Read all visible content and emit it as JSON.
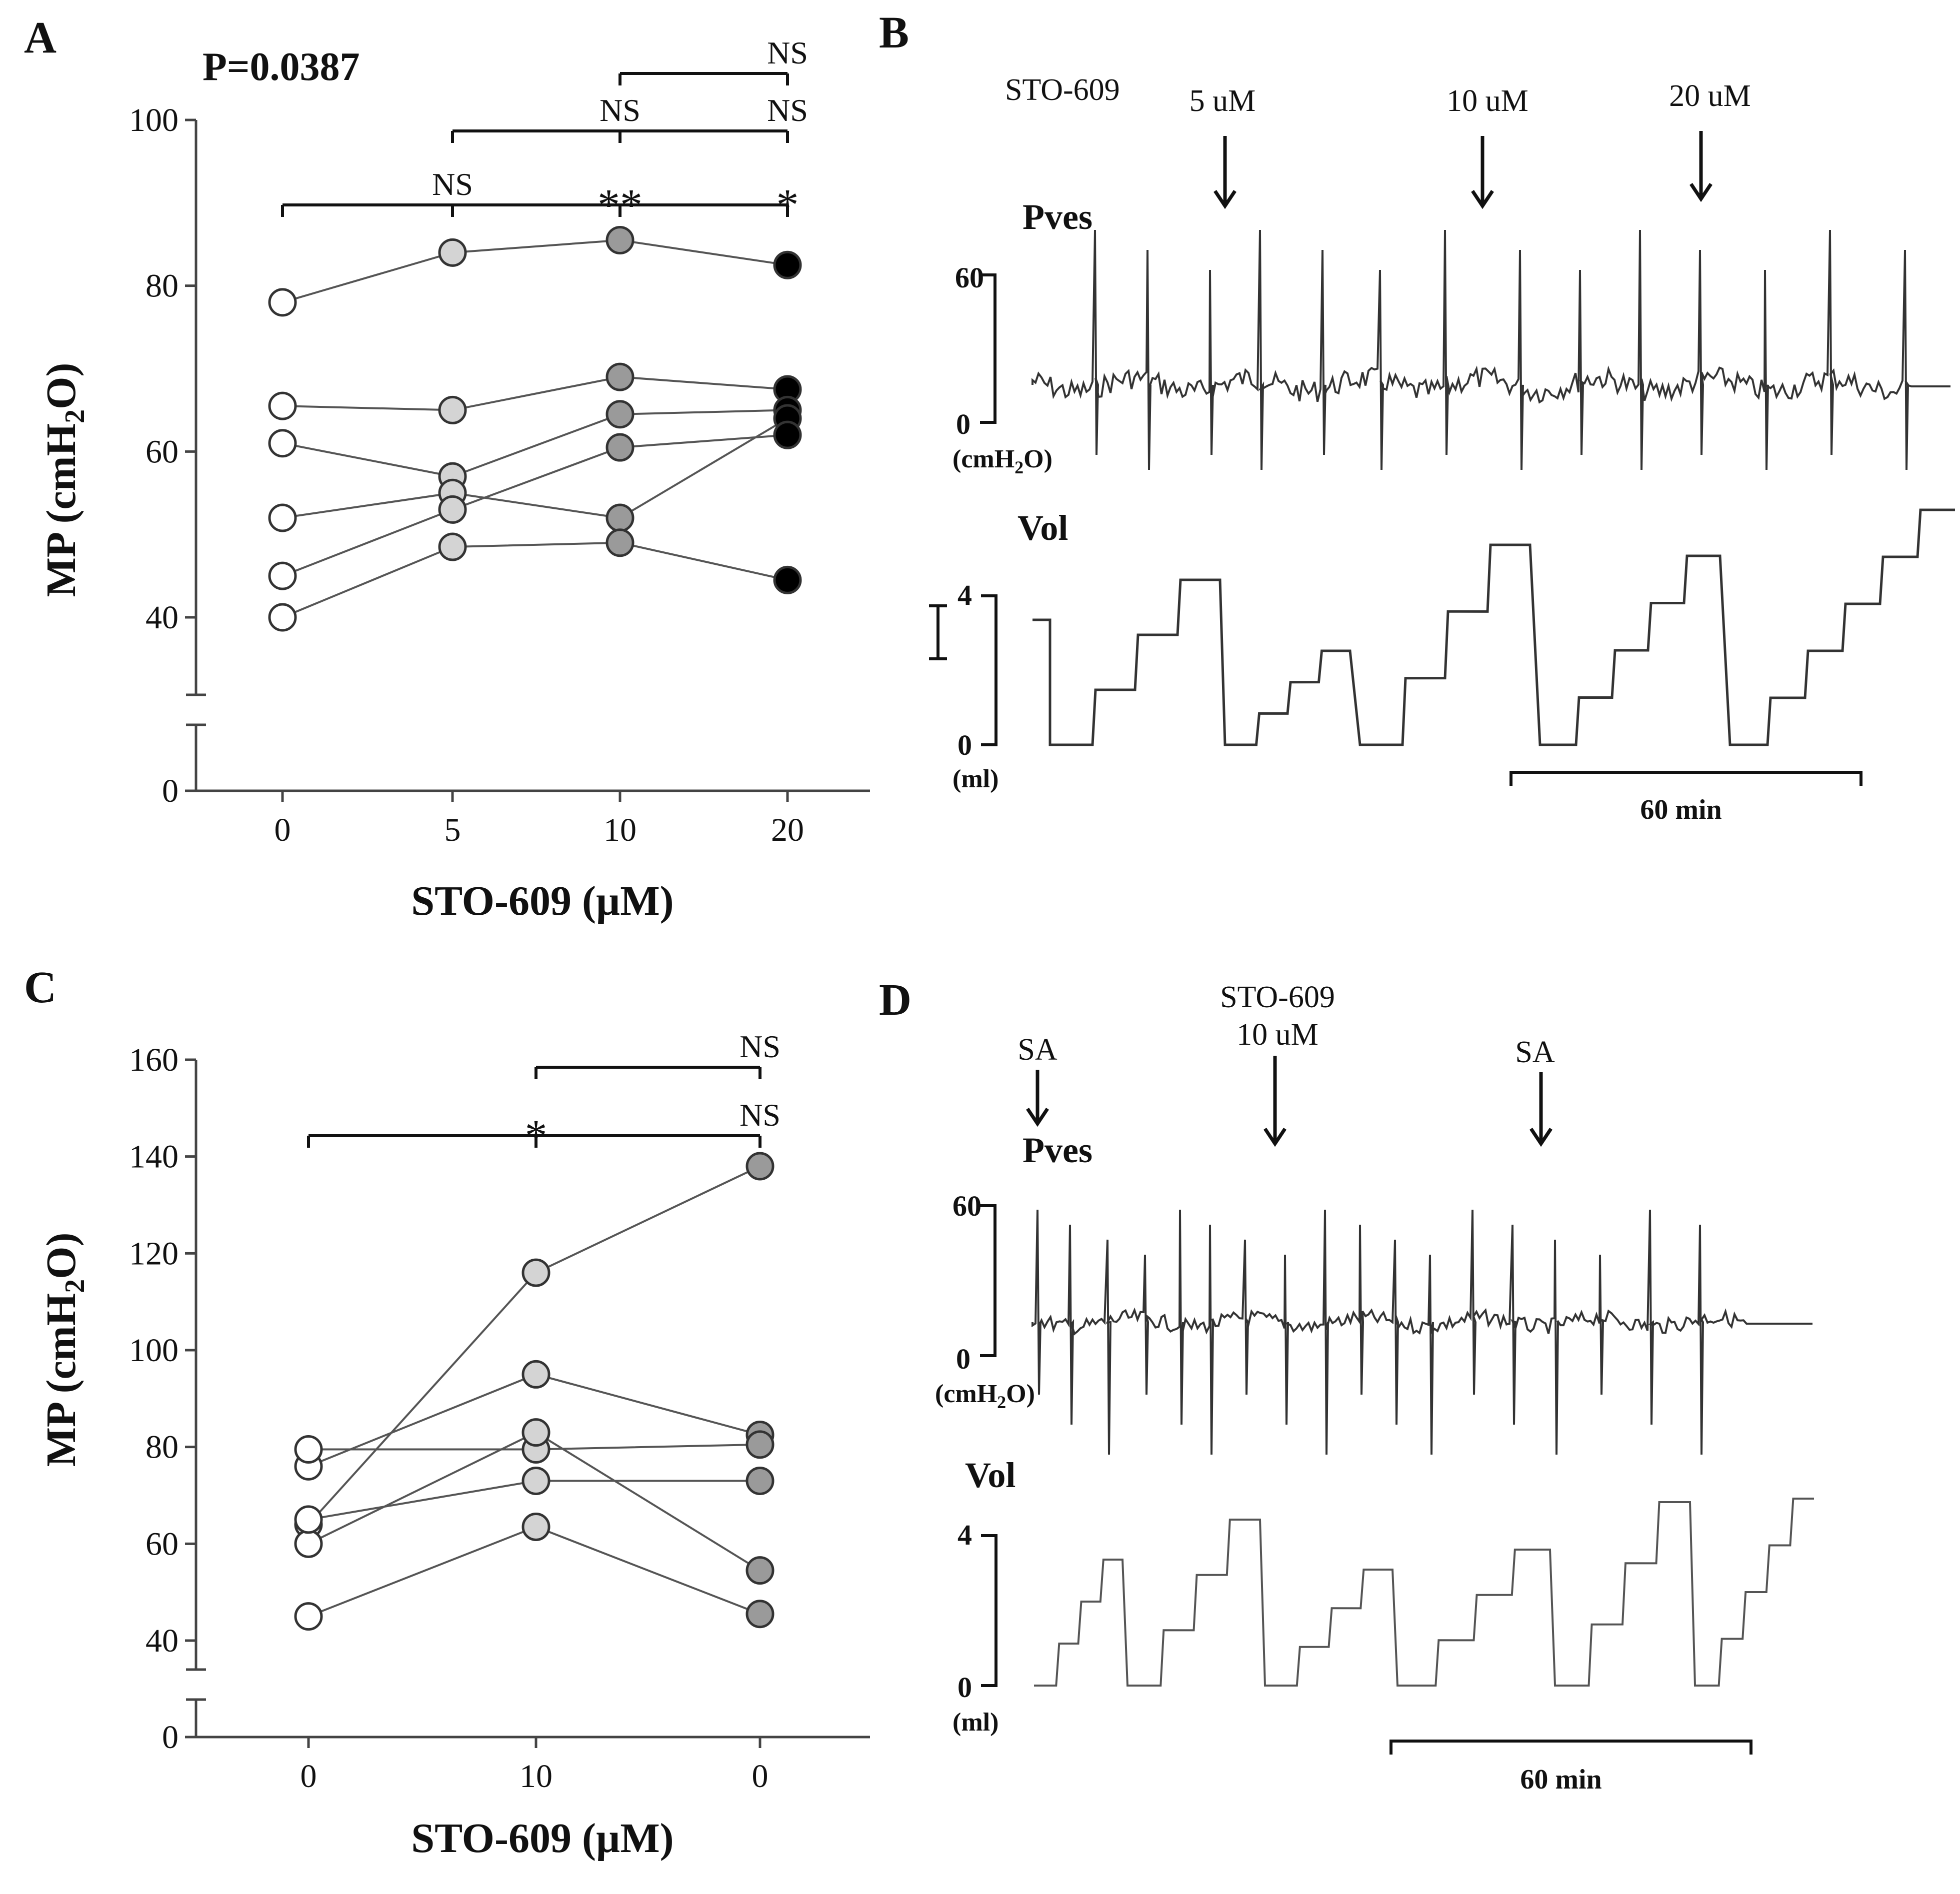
{
  "panels": {
    "A": {
      "letter": "A",
      "pvalue": "P=0.0387",
      "ylabel_main": "MP (cmH",
      "ylabel_sub": "2",
      "ylabel_end": "O)",
      "xlabel": "STO-609 (µM)",
      "yticks": [
        100,
        80,
        60,
        40,
        0
      ],
      "xticks": [
        "0",
        "5",
        "10",
        "20"
      ],
      "sig": [
        {
          "from": 0,
          "to": 3,
          "labels": [
            {
              "at": 1,
              "text": "NS"
            },
            {
              "at": 2,
              "text": "**"
            },
            {
              "at": 3,
              "text": "*"
            }
          ]
        },
        {
          "from": 1,
          "to": 3,
          "labels": [
            {
              "at": 2,
              "text": "NS"
            },
            {
              "at": 3,
              "text": "NS"
            }
          ]
        },
        {
          "from": 2,
          "to": 3,
          "labels": [
            {
              "at": 3,
              "text": "NS"
            }
          ]
        }
      ]
    },
    "C": {
      "letter": "C",
      "ylabel_main": "MP (cmH",
      "ylabel_sub": "2",
      "ylabel_end": "O)",
      "xlabel": "STO-609 (µM)",
      "yticks": [
        160,
        140,
        120,
        100,
        80,
        60,
        40,
        0
      ],
      "xticks": [
        "0",
        "10",
        "0"
      ],
      "sig": [
        {
          "from": 0,
          "to": 2,
          "labels": [
            {
              "at": 1,
              "text": "*"
            },
            {
              "at": 2,
              "text": "NS"
            }
          ]
        },
        {
          "from": 1,
          "to": 2,
          "labels": [
            {
              "at": 2,
              "text": "NS"
            }
          ]
        }
      ]
    },
    "B": {
      "letter": "B",
      "drug": "STO-609",
      "doses": [
        "5 uM",
        "10 uM",
        "20 uM"
      ],
      "pves_label": "Pves",
      "pves_ticks": [
        "60",
        "0"
      ],
      "pves_unit_main": "(cmH",
      "pves_unit_sub": "2",
      "pves_unit_end": "O)",
      "vol_label": "Vol",
      "vol_ticks": [
        "4",
        "0"
      ],
      "vol_unit": "(ml)",
      "scalebar": "60 min"
    },
    "D": {
      "letter": "D",
      "arrow1": "SA",
      "arrow2_line1": "STO-609",
      "arrow2_line2": "10 uM",
      "arrow3": "SA",
      "pves_label": "Pves",
      "pves_ticks": [
        "60",
        "0"
      ],
      "pves_unit_main": "(cmH",
      "pves_unit_sub": "2",
      "pves_unit_end": "O)",
      "vol_label": "Vol",
      "vol_ticks": [
        "4",
        "0"
      ],
      "vol_unit": "(ml)",
      "scalebar": "60 min"
    }
  },
  "chart_data": [
    {
      "panel": "A",
      "type": "scatter",
      "x": [
        "0",
        "5",
        "10",
        "20"
      ],
      "ylabel": "MP (cmH2O)",
      "xlabel": "STO-609 (µM)",
      "ylim": [
        0,
        100
      ],
      "fills": [
        "#ffffff",
        "#d4d4d4",
        "#9a9a9a",
        "#000000"
      ],
      "series": [
        {
          "values": [
            78,
            84,
            85.5,
            82.5
          ]
        },
        {
          "values": [
            65.5,
            65,
            69,
            67.5
          ]
        },
        {
          "values": [
            61,
            57,
            64.5,
            65
          ]
        },
        {
          "values": [
            52,
            55,
            52,
            64
          ]
        },
        {
          "values": [
            45,
            53,
            60.5,
            62
          ]
        },
        {
          "values": [
            40,
            48.5,
            49,
            44.5
          ]
        }
      ]
    },
    {
      "panel": "C",
      "type": "scatter",
      "x": [
        "0",
        "10",
        "0"
      ],
      "ylabel": "MP (cmH2O)",
      "xlabel": "STO-609 (µM)",
      "ylim": [
        0,
        160
      ],
      "fills": [
        "#ffffff",
        "#d4d4d4",
        "#9a9a9a"
      ],
      "series": [
        {
          "values": [
            64,
            116,
            138
          ]
        },
        {
          "values": [
            76,
            95,
            82.5
          ]
        },
        {
          "values": [
            79.5,
            79.5,
            80.5
          ]
        },
        {
          "values": [
            60,
            83,
            54.5
          ]
        },
        {
          "values": [
            65,
            73,
            73
          ]
        },
        {
          "values": [
            45,
            63.5,
            45.5
          ]
        }
      ]
    }
  ]
}
